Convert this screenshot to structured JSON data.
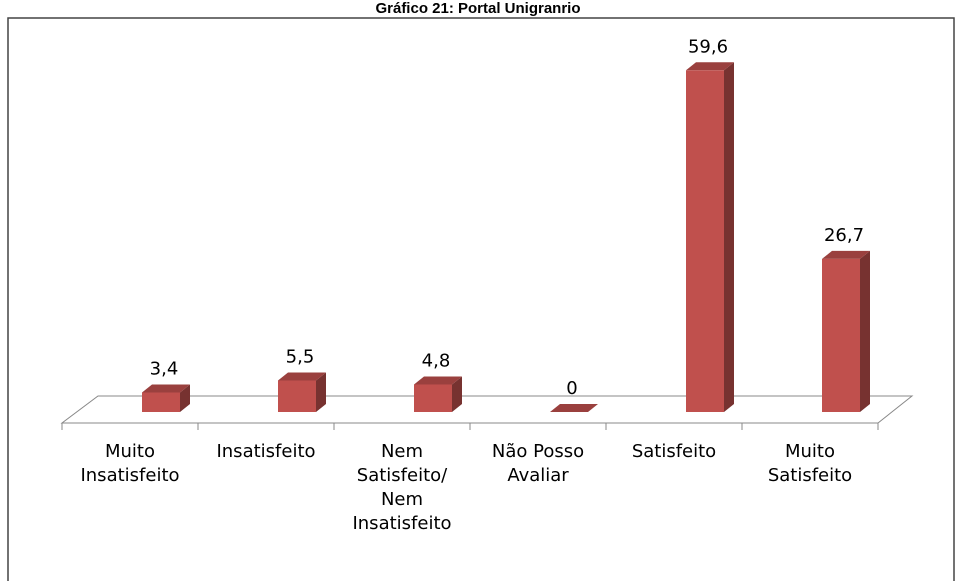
{
  "chart_data": {
    "type": "bar3d",
    "title": "Gráfico 21: Portal Unigranrio",
    "categories": [
      "Muito\nInsatisfeito",
      "Insatisfeito",
      "Nem\nSatisfeito/\nNem\nInsatisfeito",
      "Não Posso\nAvaliar",
      "Satisfeito",
      "Muito\nSatisfeito"
    ],
    "values": [
      3.4,
      5.5,
      4.8,
      0,
      59.6,
      26.7
    ],
    "value_labels": [
      "3,4",
      "5,5",
      "4,8",
      "0",
      "59,6",
      "26,7"
    ],
    "color": "#c0504d",
    "ylim": [
      0,
      60
    ]
  }
}
